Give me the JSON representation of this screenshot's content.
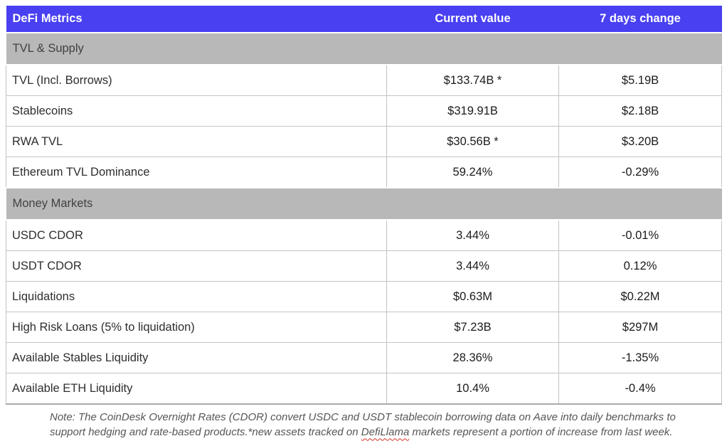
{
  "header": {
    "metric_col": "DeFi Metrics",
    "current_col": "Current value",
    "change_col": "7 days change"
  },
  "sections": [
    {
      "title": "TVL & Supply",
      "rows": [
        {
          "label": "TVL (Incl. Borrows)",
          "current": "$133.74B *",
          "change": "$5.19B"
        },
        {
          "label": "Stablecoins",
          "current": "$319.91B",
          "change": "$2.18B"
        },
        {
          "label": "RWA TVL",
          "current": "$30.56B *",
          "change": "$3.20B"
        },
        {
          "label": "Ethereum TVL Dominance",
          "current": "59.24%",
          "change": "-0.29%"
        }
      ]
    },
    {
      "title": "Money Markets",
      "rows": [
        {
          "label": "USDC CDOR",
          "current": "3.44%",
          "change": "-0.01%"
        },
        {
          "label": "USDT CDOR",
          "current": "3.44%",
          "change": "0.12%"
        },
        {
          "label": "Liquidations",
          "current": "$0.63M",
          "change": "$0.22M"
        },
        {
          "label": "High Risk Loans (5% to liquidation)",
          "current": "$7.23B",
          "change": "$297M"
        },
        {
          "label": "Available Stables Liquidity",
          "current": "28.36%",
          "change": "-1.35%"
        },
        {
          "label": "Available ETH Liquidity",
          "current": "10.4%",
          "change": "-0.4%"
        }
      ]
    }
  ],
  "footnote": {
    "part1": "Note: The CoinDesk Overnight Rates (CDOR) convert USDC and USDT stablecoin borrowing data on Aave into daily benchmarks to support hedging and rate-based products.*new assets tracked on ",
    "misspelled_word": "DefiLlama",
    "part2": " markets represent a portion of increase from last week."
  },
  "colors": {
    "header_bg": "#4940F1",
    "header_text": "#ffffff",
    "section_bg": "#b8b8b8",
    "row_border": "#c4c4c4",
    "misspell_underline": "#d93025"
  }
}
